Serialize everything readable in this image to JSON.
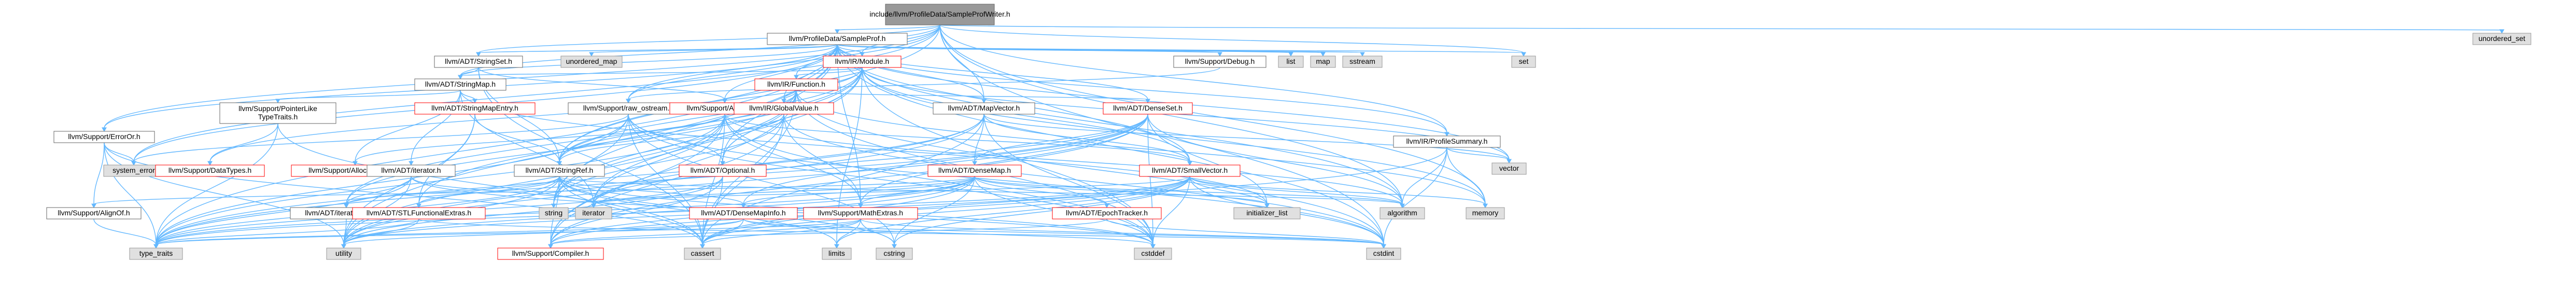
{
  "colors": {
    "root_fill": "#999999",
    "node_fill": "#ffffff",
    "node_border": "#666666",
    "system_fill": "#e0e0e0",
    "system_border": "#999999",
    "red_border": "#ff0000",
    "edge": "#63b8ff"
  },
  "nodes": [
    {
      "id": "root",
      "label": "include/llvm/ProfileData/SampleProfWriter.h",
      "kind": "root"
    },
    {
      "id": "SampleProf",
      "label": "llvm/ProfileData/SampleProf.h",
      "kind": "normal"
    },
    {
      "id": "unordered_set",
      "label": "unordered_set",
      "kind": "system"
    },
    {
      "id": "StringSet",
      "label": "llvm/ADT/StringSet.h",
      "kind": "normal"
    },
    {
      "id": "unordered_map",
      "label": "unordered_map",
      "kind": "system"
    },
    {
      "id": "Module",
      "label": "llvm/IR/Module.h",
      "kind": "red"
    },
    {
      "id": "Debug",
      "label": "llvm/Support/Debug.h",
      "kind": "normal"
    },
    {
      "id": "list",
      "label": "list",
      "kind": "system"
    },
    {
      "id": "map",
      "label": "map",
      "kind": "system"
    },
    {
      "id": "sstream",
      "label": "sstream",
      "kind": "system"
    },
    {
      "id": "set",
      "label": "set",
      "kind": "system"
    },
    {
      "id": "ErrorOr",
      "label": "llvm/Support/ErrorOr.h",
      "kind": "normal"
    },
    {
      "id": "StringMap",
      "label": "llvm/ADT/StringMap.h",
      "kind": "normal"
    },
    {
      "id": "Function",
      "label": "llvm/IR/Function.h",
      "kind": "red"
    },
    {
      "id": "ProfileSummary",
      "label": "llvm/IR/ProfileSummary.h",
      "kind": "normal"
    },
    {
      "id": "PointerLikeTypeTraits",
      "label": "llvm/Support/PointerLike\nTypeTraits.h",
      "kind": "normal"
    },
    {
      "id": "StringMapEntry",
      "label": "llvm/ADT/StringMapEntry.h",
      "kind": "red"
    },
    {
      "id": "raw_ostream",
      "label": "llvm/Support/raw_ostream.h",
      "kind": "normal"
    },
    {
      "id": "Allocator",
      "label": "llvm/Support/Allocator.h",
      "kind": "red"
    },
    {
      "id": "GlobalValue",
      "label": "llvm/IR/GlobalValue.h",
      "kind": "red"
    },
    {
      "id": "MapVector",
      "label": "llvm/ADT/MapVector.h",
      "kind": "normal"
    },
    {
      "id": "DenseSet",
      "label": "llvm/ADT/DenseSet.h",
      "kind": "red"
    },
    {
      "id": "vector",
      "label": "vector",
      "kind": "system"
    },
    {
      "id": "system_error",
      "label": "system_error",
      "kind": "system"
    },
    {
      "id": "DataTypes",
      "label": "llvm/Support/DataTypes.h",
      "kind": "red"
    },
    {
      "id": "AllocatorBase",
      "label": "llvm/Support/AllocatorBase.h",
      "kind": "red"
    },
    {
      "id": "iterator",
      "label": "llvm/ADT/iterator.h",
      "kind": "normal"
    },
    {
      "id": "StringRef",
      "label": "llvm/ADT/StringRef.h",
      "kind": "normal"
    },
    {
      "id": "Optional",
      "label": "llvm/ADT/Optional.h",
      "kind": "red"
    },
    {
      "id": "DenseMap",
      "label": "llvm/ADT/DenseMap.h",
      "kind": "red"
    },
    {
      "id": "SmallVector",
      "label": "llvm/ADT/SmallVector.h",
      "kind": "red"
    },
    {
      "id": "AlignOf",
      "label": "llvm/Support/AlignOf.h",
      "kind": "normal"
    },
    {
      "id": "iterator_range",
      "label": "llvm/ADT/iterator_range.h",
      "kind": "normal"
    },
    {
      "id": "STLFunctionalExtras",
      "label": "llvm/ADT/STLFunctionalExtras.h",
      "kind": "red"
    },
    {
      "id": "string",
      "label": "string",
      "kind": "system"
    },
    {
      "id": "iterator_sys",
      "label": "iterator",
      "kind": "system"
    },
    {
      "id": "DenseMapInfo",
      "label": "llvm/ADT/DenseMapInfo.h",
      "kind": "red"
    },
    {
      "id": "MathExtras",
      "label": "llvm/Support/MathExtras.h",
      "kind": "red"
    },
    {
      "id": "EpochTracker",
      "label": "llvm/ADT/EpochTracker.h",
      "kind": "red"
    },
    {
      "id": "initializer_list",
      "label": "initializer_list",
      "kind": "system"
    },
    {
      "id": "algorithm",
      "label": "algorithm",
      "kind": "system"
    },
    {
      "id": "memory",
      "label": "memory",
      "kind": "system"
    },
    {
      "id": "type_traits",
      "label": "type_traits",
      "kind": "system"
    },
    {
      "id": "utility",
      "label": "utility",
      "kind": "system"
    },
    {
      "id": "Compiler",
      "label": "llvm/Support/Compiler.h",
      "kind": "red"
    },
    {
      "id": "cassert",
      "label": "cassert",
      "kind": "system"
    },
    {
      "id": "limits",
      "label": "limits",
      "kind": "system"
    },
    {
      "id": "cstring",
      "label": "cstring",
      "kind": "system"
    },
    {
      "id": "cstddef",
      "label": "cstddef",
      "kind": "system"
    },
    {
      "id": "cstdint",
      "label": "cstdint",
      "kind": "system"
    }
  ],
  "edges": [
    [
      "root",
      "SampleProf"
    ],
    [
      "root",
      "unordered_set"
    ],
    [
      "root",
      "StringSet"
    ],
    [
      "root",
      "StringMap"
    ],
    [
      "root",
      "ErrorOr"
    ],
    [
      "root",
      "raw_ostream"
    ],
    [
      "root",
      "ProfileSummary"
    ],
    [
      "root",
      "Module"
    ],
    [
      "root",
      "set"
    ],
    [
      "root",
      "system_error"
    ],
    [
      "root",
      "MapVector"
    ],
    [
      "root",
      "algorithm"
    ],
    [
      "root",
      "memory"
    ],
    [
      "root",
      "cstdint"
    ],
    [
      "root",
      "StringRef"
    ],
    [
      "SampleProf",
      "unordered_map"
    ],
    [
      "SampleProf",
      "StringSet"
    ],
    [
      "SampleProf",
      "Module"
    ],
    [
      "SampleProf",
      "Debug"
    ],
    [
      "SampleProf",
      "list"
    ],
    [
      "SampleProf",
      "map"
    ],
    [
      "SampleProf",
      "sstream"
    ],
    [
      "SampleProf",
      "set"
    ],
    [
      "SampleProf",
      "ErrorOr"
    ],
    [
      "SampleProf",
      "StringMap"
    ],
    [
      "SampleProf",
      "Function"
    ],
    [
      "SampleProf",
      "GlobalValue"
    ],
    [
      "SampleProf",
      "DenseSet"
    ],
    [
      "SampleProf",
      "MapVector"
    ],
    [
      "SampleProf",
      "SmallVector"
    ],
    [
      "SampleProf",
      "StringRef"
    ],
    [
      "SampleProf",
      "raw_ostream"
    ],
    [
      "SampleProf",
      "MathExtras"
    ],
    [
      "SampleProf",
      "system_error"
    ],
    [
      "SampleProf",
      "string"
    ],
    [
      "SampleProf",
      "vector"
    ],
    [
      "SampleProf",
      "cstdint"
    ],
    [
      "SampleProf",
      "ProfileSummary"
    ],
    [
      "SampleProf",
      "Allocator"
    ],
    [
      "SampleProf",
      "type_traits"
    ],
    [
      "SampleProf",
      "utility"
    ],
    [
      "SampleProf",
      "Optional"
    ],
    [
      "SampleProf",
      "algorithm"
    ],
    [
      "StringSet",
      "StringMap"
    ],
    [
      "StringSet",
      "StringRef"
    ],
    [
      "StringSet",
      "Allocator"
    ],
    [
      "StringSet",
      "cassert"
    ],
    [
      "Module",
      "StringMap"
    ],
    [
      "Module",
      "Function"
    ],
    [
      "Module",
      "GlobalValue"
    ],
    [
      "Module",
      "Optional"
    ],
    [
      "Module",
      "StringRef"
    ],
    [
      "Module",
      "iterator_range"
    ],
    [
      "Module",
      "DataTypes"
    ],
    [
      "Module",
      "cstddef"
    ],
    [
      "Module",
      "iterator_sys"
    ],
    [
      "Module",
      "limits"
    ],
    [
      "Module",
      "memory"
    ],
    [
      "Module",
      "string"
    ],
    [
      "Module",
      "vector"
    ],
    [
      "Module",
      "SmallVector"
    ],
    [
      "Module",
      "STLFunctionalExtras"
    ],
    [
      "Function",
      "GlobalValue"
    ],
    [
      "Function",
      "DenseSet"
    ],
    [
      "Function",
      "StringRef"
    ],
    [
      "Function",
      "Optional"
    ],
    [
      "Function",
      "iterator_range"
    ],
    [
      "Function",
      "Compiler"
    ],
    [
      "Function",
      "cassert"
    ],
    [
      "Function",
      "cstddef"
    ],
    [
      "Function",
      "cstdint"
    ],
    [
      "Function",
      "memory"
    ],
    [
      "Function",
      "string"
    ],
    [
      "ErrorOr",
      "AlignOf"
    ],
    [
      "ErrorOr",
      "system_error"
    ],
    [
      "ErrorOr",
      "cassert"
    ],
    [
      "ErrorOr",
      "type_traits"
    ],
    [
      "ErrorOr",
      "utility"
    ],
    [
      "StringMap",
      "StringMapEntry"
    ],
    [
      "StringMap",
      "iterator"
    ],
    [
      "StringMap",
      "AllocatorBase"
    ],
    [
      "StringMap",
      "PointerLikeTypeTraits"
    ],
    [
      "StringMap",
      "initializer_list"
    ],
    [
      "StringMap",
      "iterator_sys"
    ],
    [
      "PointerLikeTypeTraits",
      "DataTypes"
    ],
    [
      "PointerLikeTypeTraits",
      "cassert"
    ],
    [
      "PointerLikeTypeTraits",
      "type_traits"
    ],
    [
      "StringMapEntry",
      "StringRef"
    ],
    [
      "StringMapEntry",
      "STLFunctionalExtras"
    ],
    [
      "StringMapEntry",
      "utility"
    ],
    [
      "raw_ostream",
      "StringRef"
    ],
    [
      "raw_ostream",
      "Optional"
    ],
    [
      "raw_ostream",
      "cassert"
    ],
    [
      "raw_ostream",
      "cstddef"
    ],
    [
      "raw_ostream",
      "cstdint"
    ],
    [
      "raw_ostream",
      "cstring"
    ],
    [
      "raw_ostream",
      "string"
    ],
    [
      "raw_ostream",
      "system_error"
    ],
    [
      "raw_ostream",
      "type_traits"
    ],
    [
      "Allocator",
      "AllocatorBase"
    ],
    [
      "Allocator",
      "MathExtras"
    ],
    [
      "Allocator",
      "Compiler"
    ],
    [
      "Allocator",
      "SmallVector"
    ],
    [
      "Allocator",
      "algorithm"
    ],
    [
      "Allocator",
      "cassert"
    ],
    [
      "Allocator",
      "cstddef"
    ],
    [
      "Allocator",
      "iterator_sys"
    ],
    [
      "Allocator",
      "type_traits"
    ],
    [
      "Allocator",
      "utility"
    ],
    [
      "GlobalValue",
      "StringRef"
    ],
    [
      "GlobalValue",
      "MathExtras"
    ],
    [
      "GlobalValue",
      "Compiler"
    ],
    [
      "GlobalValue",
      "cassert"
    ],
    [
      "GlobalValue",
      "cstdint"
    ],
    [
      "GlobalValue",
      "string"
    ],
    [
      "MapVector",
      "DenseMap"
    ],
    [
      "MapVector",
      "SmallVector"
    ],
    [
      "MapVector",
      "cassert"
    ],
    [
      "MapVector",
      "cstddef"
    ],
    [
      "MapVector",
      "iterator_sys"
    ],
    [
      "MapVector",
      "type_traits"
    ],
    [
      "MapVector",
      "utility"
    ],
    [
      "MapVector",
      "vector"
    ],
    [
      "DenseSet",
      "DenseMap"
    ],
    [
      "DenseSet",
      "DenseMapInfo"
    ],
    [
      "DenseSet",
      "MathExtras"
    ],
    [
      "DenseSet",
      "Compiler"
    ],
    [
      "DenseSet",
      "type_traits"
    ],
    [
      "DenseSet",
      "algorithm"
    ],
    [
      "DenseSet",
      "cstddef"
    ],
    [
      "DenseSet",
      "initializer_list"
    ],
    [
      "DenseSet",
      "iterator_sys"
    ],
    [
      "DenseSet",
      "utility"
    ],
    [
      "iterator",
      "iterator_range"
    ],
    [
      "iterator",
      "cstddef"
    ],
    [
      "iterator",
      "iterator_sys"
    ],
    [
      "iterator",
      "type_traits"
    ],
    [
      "iterator",
      "utility"
    ],
    [
      "StringRef",
      "STLFunctionalExtras"
    ],
    [
      "StringRef",
      "iterator_range"
    ],
    [
      "StringRef",
      "Compiler"
    ],
    [
      "StringRef",
      "algorithm"
    ],
    [
      "StringRef",
      "cassert"
    ],
    [
      "StringRef",
      "cstddef"
    ],
    [
      "StringRef",
      "cstring"
    ],
    [
      "StringRef",
      "limits"
    ],
    [
      "StringRef",
      "string"
    ],
    [
      "StringRef",
      "type_traits"
    ],
    [
      "StringRef",
      "utility"
    ],
    [
      "StringRef",
      "DenseMapInfo"
    ],
    [
      "Optional",
      "Compiler"
    ],
    [
      "Optional",
      "cassert"
    ],
    [
      "Optional",
      "new"
    ],
    [
      "Optional",
      "type_traits"
    ],
    [
      "Optional",
      "utility"
    ],
    [
      "DenseMap",
      "DenseMapInfo"
    ],
    [
      "DenseMap",
      "EpochTracker"
    ],
    [
      "DenseMap",
      "AlignOf"
    ],
    [
      "DenseMap",
      "Compiler"
    ],
    [
      "DenseMap",
      "MathExtras"
    ],
    [
      "DenseMap",
      "algorithm"
    ],
    [
      "DenseMap",
      "cassert"
    ],
    [
      "DenseMap",
      "cstddef"
    ],
    [
      "DenseMap",
      "cstring"
    ],
    [
      "DenseMap",
      "initializer_list"
    ],
    [
      "DenseMap",
      "iterator_sys"
    ],
    [
      "DenseMap",
      "new"
    ],
    [
      "DenseMap",
      "type_traits"
    ],
    [
      "DenseMap",
      "utility"
    ],
    [
      "SmallVector",
      "Compiler"
    ],
    [
      "SmallVector",
      "type_traits"
    ],
    [
      "SmallVector",
      "algorithm"
    ],
    [
      "SmallVector",
      "cassert"
    ],
    [
      "SmallVector",
      "cstddef"
    ],
    [
      "SmallVector",
      "cstdint"
    ],
    [
      "SmallVector",
      "cstring"
    ],
    [
      "SmallVector",
      "functional"
    ],
    [
      "SmallVector",
      "initializer_list"
    ],
    [
      "SmallVector",
      "iterator_sys"
    ],
    [
      "SmallVector",
      "limits"
    ],
    [
      "SmallVector",
      "memory"
    ],
    [
      "SmallVector",
      "utility"
    ],
    [
      "STLFunctionalExtras",
      "type_traits"
    ],
    [
      "STLFunctionalExtras",
      "utility"
    ],
    [
      "STLFunctionalExtras",
      "cstdint"
    ],
    [
      "iterator_range",
      "utility"
    ],
    [
      "DenseMapInfo",
      "cassert"
    ],
    [
      "DenseMapInfo",
      "cstddef"
    ],
    [
      "DenseMapInfo",
      "cstdint"
    ],
    [
      "DenseMapInfo",
      "tuple"
    ],
    [
      "DenseMapInfo",
      "type_traits"
    ],
    [
      "DenseMapInfo",
      "utility"
    ],
    [
      "MathExtras",
      "Compiler"
    ],
    [
      "MathExtras",
      "cassert"
    ],
    [
      "MathExtras",
      "climits"
    ],
    [
      "MathExtras",
      "cmath"
    ],
    [
      "MathExtras",
      "cstdint"
    ],
    [
      "MathExtras",
      "cstring"
    ],
    [
      "MathExtras",
      "limits"
    ],
    [
      "MathExtras",
      "type_traits"
    ],
    [
      "EpochTracker",
      "Compiler"
    ],
    [
      "EpochTracker",
      "cstdint"
    ],
    [
      "ProfileSummary",
      "algorithm"
    ],
    [
      "ProfileSummary",
      "cassert"
    ],
    [
      "ProfileSummary",
      "cstdint"
    ],
    [
      "ProfileSummary",
      "memory"
    ],
    [
      "ProfileSummary",
      "vector"
    ],
    [
      "AlignOf",
      "type_traits"
    ],
    [
      "Debug",
      "raw_ostream"
    ]
  ]
}
